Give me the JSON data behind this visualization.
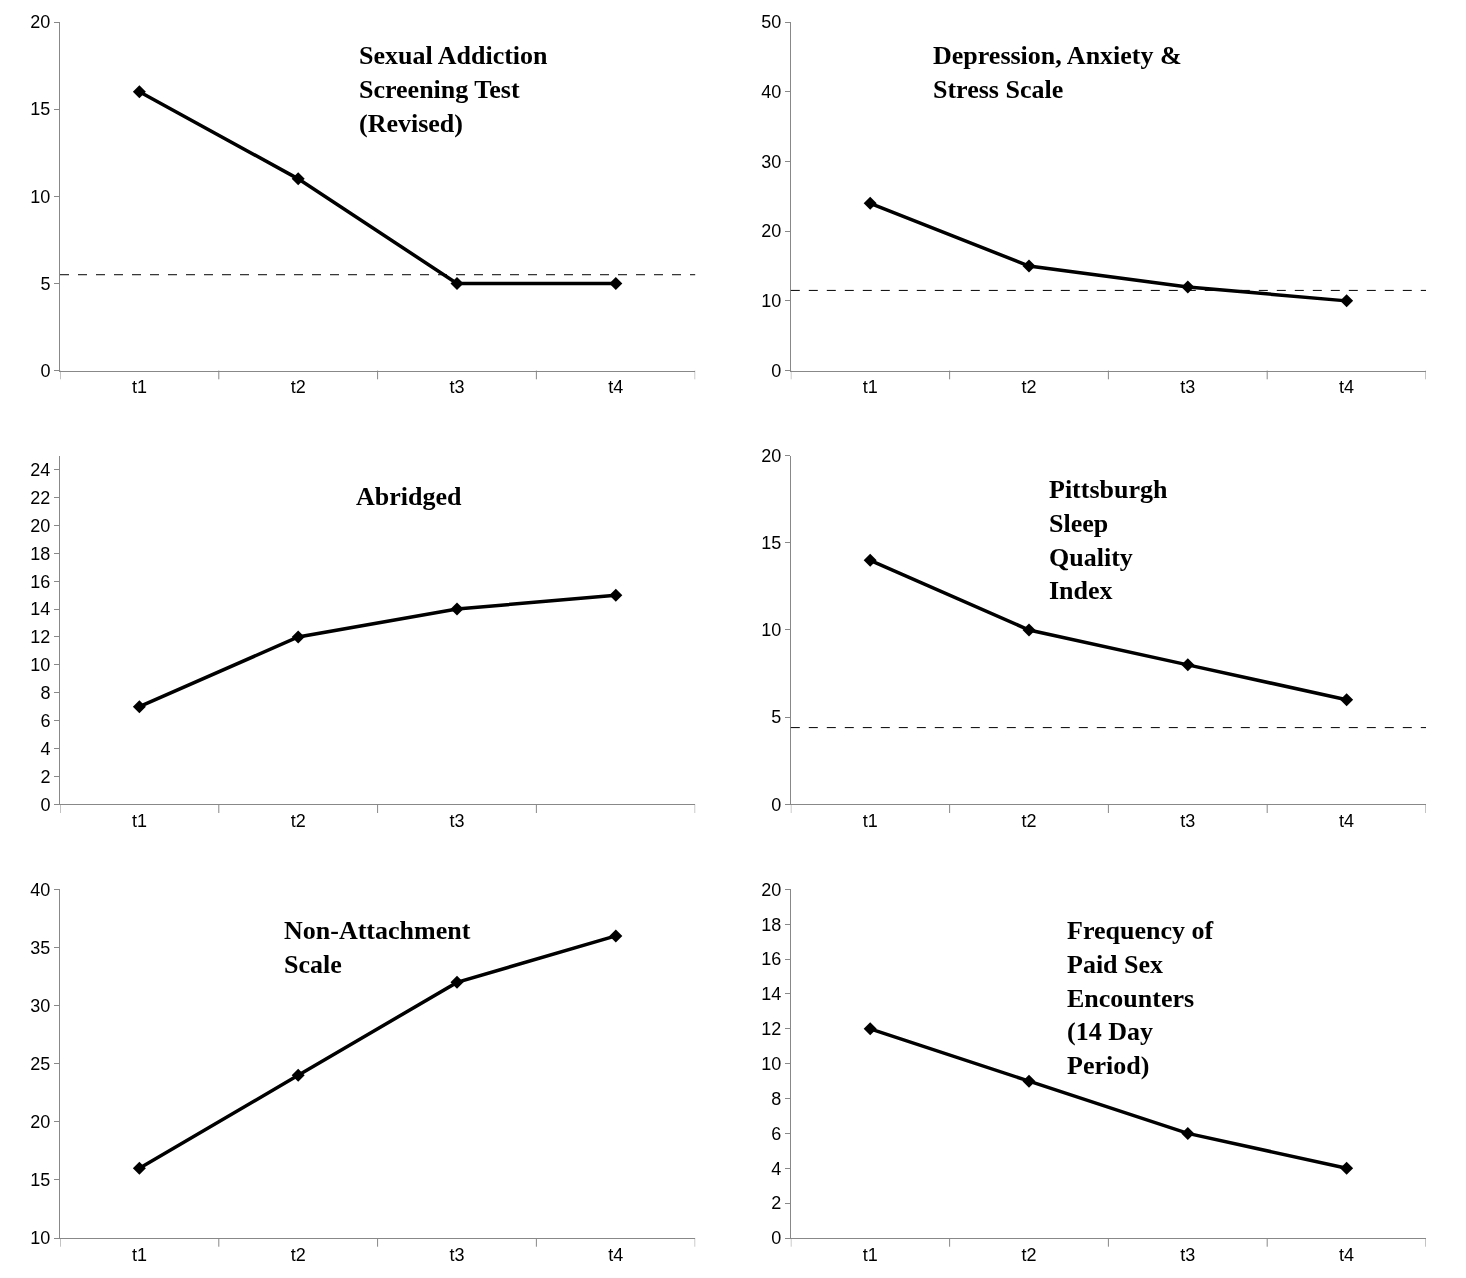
{
  "chart_data": [
    {
      "type": "line",
      "title": "Sexual Addiction Screening Test (Revised)",
      "categories": [
        "t1",
        "t2",
        "t3",
        "t4"
      ],
      "series": [
        {
          "color": "#000000",
          "values": [
            16,
            11,
            5,
            5
          ]
        }
      ],
      "ylim": [
        0,
        20
      ],
      "yticks": [
        0,
        5,
        10,
        15,
        20
      ],
      "ref_lines": [
        {
          "axis": "y",
          "value": 5.5,
          "line_style": "dashed",
          "color": "#000000"
        }
      ],
      "marker": "diamond",
      "line_style": "solid",
      "grid": false
    },
    {
      "type": "line",
      "title": "Depression, Anxiety & Stress Scale",
      "categories": [
        "t1",
        "t2",
        "t3",
        "t4"
      ],
      "series": [
        {
          "color": "#000000",
          "values": [
            24,
            15,
            12,
            10
          ]
        }
      ],
      "ylim": [
        0,
        50
      ],
      "yticks": [
        0,
        10,
        20,
        30,
        40,
        50
      ],
      "ref_lines": [
        {
          "axis": "y",
          "value": 11.5,
          "line_style": "dashed",
          "color": "#000000"
        }
      ],
      "marker": "diamond",
      "line_style": "solid",
      "grid": false
    },
    {
      "type": "line",
      "title": "Abridged",
      "categories": [
        "t1",
        "t2",
        "t3",
        null
      ],
      "series": [
        {
          "color": "#000000",
          "values": [
            7,
            12,
            14,
            15
          ]
        }
      ],
      "ylim": [
        0,
        25
      ],
      "yticks": [
        0,
        2,
        4,
        6,
        8,
        10,
        12,
        14,
        16,
        18,
        20,
        22,
        24
      ],
      "marker": "diamond",
      "line_style": "solid",
      "grid": false
    },
    {
      "type": "line",
      "title": "Pittsburgh Sleep Quality Index",
      "categories": [
        "t1",
        "t2",
        "t3",
        "t4"
      ],
      "series": [
        {
          "color": "#000000",
          "values": [
            14,
            10,
            8,
            6
          ]
        }
      ],
      "ylim": [
        0,
        20
      ],
      "yticks": [
        0,
        5,
        10,
        15,
        20
      ],
      "ref_lines": [
        {
          "axis": "y",
          "value": 4.4,
          "line_style": "dashed",
          "color": "#000000"
        }
      ],
      "marker": "diamond",
      "line_style": "solid",
      "grid": false
    },
    {
      "type": "line",
      "title": "Non-Attachment Scale",
      "categories": [
        "t1",
        "t2",
        "t3",
        "t4"
      ],
      "series": [
        {
          "color": "#000000",
          "values": [
            16,
            24,
            32,
            36
          ]
        }
      ],
      "ylim": [
        10,
        40
      ],
      "yticks": [
        10,
        15,
        20,
        25,
        30,
        35,
        40
      ],
      "marker": "diamond",
      "line_style": "solid",
      "grid": false
    },
    {
      "type": "line",
      "title": "Frequency of Paid Sex Encounters (14 Day Period)",
      "categories": [
        "t1",
        "t2",
        "t3",
        "t4"
      ],
      "series": [
        {
          "color": "#000000",
          "values": [
            12,
            9,
            6,
            4
          ]
        }
      ],
      "ylim": [
        0,
        20
      ],
      "yticks": [
        0,
        2,
        4,
        6,
        8,
        10,
        12,
        14,
        16,
        18,
        20
      ],
      "marker": "diamond",
      "line_style": "solid",
      "grid": false
    }
  ]
}
